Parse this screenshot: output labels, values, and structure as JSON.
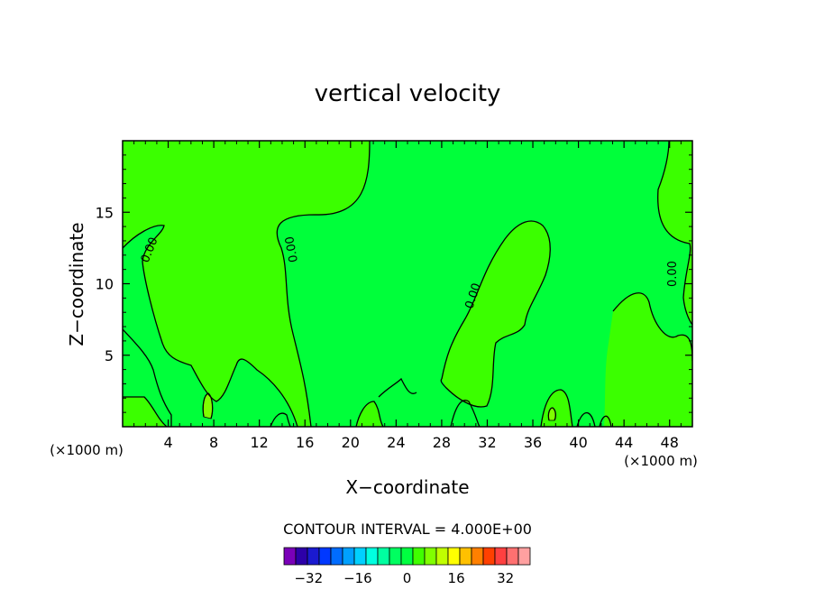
{
  "chart_data": {
    "type": "heatmap",
    "title": "vertical velocity",
    "xlabel": "X−coordinate",
    "ylabel": "Z−coordinate",
    "x_unit": "(×1000 m)",
    "xlim": [
      0,
      50
    ],
    "ylim": [
      0,
      20
    ],
    "x_ticks": [
      4,
      8,
      12,
      16,
      20,
      24,
      28,
      32,
      36,
      40,
      44,
      48
    ],
    "y_ticks": [
      5,
      10,
      15
    ],
    "contour_labels": [
      "0.00",
      "0.00",
      "0.00",
      "0.00"
    ],
    "contour_interval_text": "CONTOUR INTERVAL = 4.000E+00",
    "colorbar": {
      "tick_labels": [
        "−32",
        "−16",
        "0",
        "16",
        "32"
      ],
      "tick_values": [
        -32,
        -16,
        0,
        16,
        32
      ],
      "min": -40,
      "max": 40,
      "colors": [
        "#7a00b8",
        "#2d00a8",
        "#1a1ad0",
        "#0038ff",
        "#006cff",
        "#00a0ff",
        "#00d0ff",
        "#00ffe0",
        "#00ffa0",
        "#00ff60",
        "#00ff40",
        "#40ff00",
        "#80ff00",
        "#c0ff00",
        "#ffff00",
        "#ffc000",
        "#ff8000",
        "#ff4000",
        "#ff4040",
        "#ff7070",
        "#ffa0a0"
      ]
    },
    "background_field_color": "#00ff3a",
    "positive_region_color": "#3bff00",
    "max_region_color": "#7fff00"
  }
}
